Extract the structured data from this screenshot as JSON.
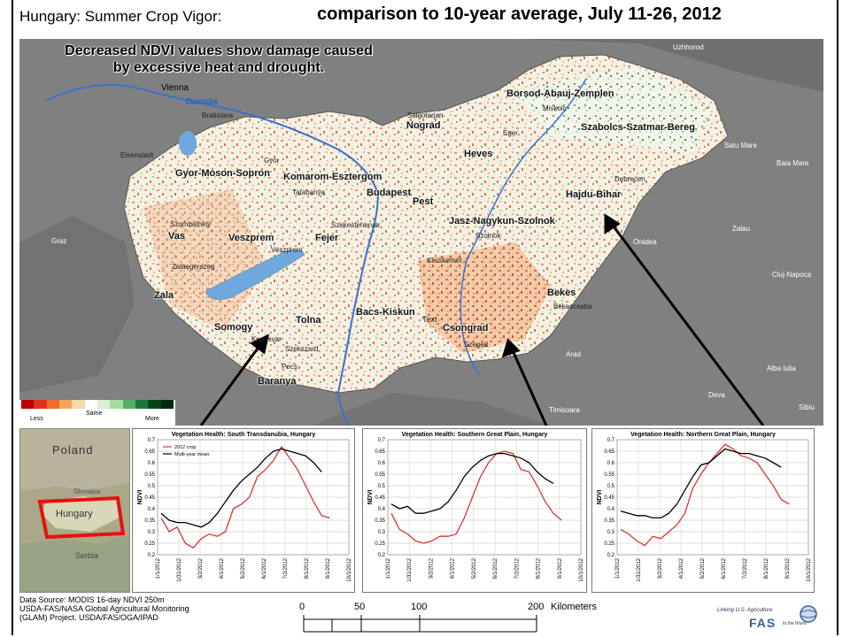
{
  "header": {
    "left_title": "Hungary: Summer Crop Vigor:",
    "right_title": "comparison to 10-year average, July 11-26, 2012"
  },
  "map": {
    "subtitle_line1": "Decreased NDVI values show damage caused",
    "subtitle_line2": "by excessive heat and drought.",
    "regions": [
      "Borsod-Abauj-Zemplen",
      "Nograd",
      "Heves",
      "Szabolcs-Szatmar-Bereg",
      "Gyor-Moson-Sopron",
      "Komarom-Esztergom",
      "Budapest",
      "Pest",
      "Hajdu-Bihar",
      "Jasz-Nagykun-Szolnok",
      "Vas",
      "Veszprem",
      "Fejer",
      "Zala",
      "Bekes",
      "Somogy",
      "Tolna",
      "Bacs-Kiskun",
      "Csongrad",
      "Baranya"
    ],
    "cities": [
      "Uzhhorod",
      "Vienna",
      "Bratislava",
      "Salgotarjan",
      "Miskolc",
      "Eger",
      "Satu Mare",
      "Baia Mare",
      "Debrecen",
      "Eisenstadt",
      "Gyor",
      "Tatabanya",
      "Szombathely",
      "Szekesfehervar",
      "Szolnok",
      "Zalau",
      "Graz",
      "Veszprem",
      "Kecskemet",
      "Oradea",
      "Zalaegerszeg",
      "Cluj-Napoca",
      "Bekescsaba",
      "Kaposvar",
      "Szekszard",
      "Szeged",
      "Arad",
      "Pecs",
      "Alba Iulia",
      "Deva",
      "Timisoara",
      "Sibiu"
    ],
    "river_label": "Danube",
    "other_label": "Text",
    "legend": {
      "less": "Less",
      "same": "Same",
      "more": "More",
      "colors": [
        "#c00000",
        "#e03020",
        "#ef6a30",
        "#f3a65a",
        "#f6d9a8",
        "#ffffff",
        "#d9f0d3",
        "#a6dba0",
        "#5aae61",
        "#1b7837",
        "#00441b",
        "#002a10"
      ]
    }
  },
  "locator": {
    "label_poland": "Poland",
    "label_hungary": "Hungary",
    "label_slovakia": "Slovakia",
    "label_serbia": "Serbia"
  },
  "chart_data": [
    {
      "type": "line",
      "title": "Vegetation Health: South Transdanubia, Hungary",
      "ylabel": "NDVI",
      "ylim": [
        0.2,
        0.7
      ],
      "yticks": [
        "0.7",
        "0.65",
        "0.6",
        "0.55",
        "0.5",
        "0.45",
        "0.4",
        "0.35",
        "0.3",
        "0.25",
        "0.2"
      ],
      "xticks": [
        "1/1/2012",
        "1/31/2012",
        "3/2/2012",
        "4/1/2012",
        "5/2/2012",
        "6/1/2012",
        "7/2/2012",
        "8/1/2012",
        "9/1/2012",
        "10/1/2012"
      ],
      "legend": [
        "2012 crop",
        "Multi-year mean"
      ],
      "series": [
        {
          "name": "2012 crop",
          "color": "#d33",
          "values": [
            0.36,
            0.3,
            0.32,
            0.25,
            0.23,
            0.27,
            0.29,
            0.28,
            0.3,
            0.4,
            0.42,
            0.45,
            0.54,
            0.57,
            0.61,
            0.67,
            0.62,
            0.57,
            0.5,
            0.43,
            0.37,
            0.36
          ]
        },
        {
          "name": "Multi-year mean",
          "color": "#000",
          "values": [
            0.38,
            0.35,
            0.34,
            0.34,
            0.33,
            0.32,
            0.34,
            0.38,
            0.43,
            0.48,
            0.52,
            0.55,
            0.58,
            0.62,
            0.65,
            0.66,
            0.65,
            0.64,
            0.63,
            0.6,
            0.56,
            null
          ]
        }
      ]
    },
    {
      "type": "line",
      "title": "Vegetation Health: Southern Great Plain, Hungary",
      "ylabel": "NDVI",
      "ylim": [
        0.2,
        0.7
      ],
      "yticks": [
        "0.7",
        "0.65",
        "0.6",
        "0.55",
        "0.5",
        "0.45",
        "0.4",
        "0.35",
        "0.3",
        "0.25",
        "0.2"
      ],
      "xticks": [
        "1/1/2012",
        "1/31/2012",
        "3/2/2012",
        "4/1/2012",
        "5/2/2012",
        "6/1/2012",
        "7/2/2012",
        "8/1/2012",
        "9/1/2012",
        "10/1/2012"
      ],
      "legend": [],
      "series": [
        {
          "name": "2012 crop",
          "color": "#d33",
          "values": [
            0.38,
            0.31,
            0.29,
            0.26,
            0.25,
            0.26,
            0.28,
            0.28,
            0.29,
            0.36,
            0.45,
            0.54,
            0.6,
            0.64,
            0.65,
            0.64,
            0.57,
            0.56,
            0.5,
            0.43,
            0.38,
            0.35
          ]
        },
        {
          "name": "Multi-year mean",
          "color": "#000",
          "values": [
            0.42,
            0.4,
            0.41,
            0.38,
            0.38,
            0.39,
            0.4,
            0.43,
            0.48,
            0.54,
            0.58,
            0.61,
            0.63,
            0.64,
            0.64,
            0.63,
            0.62,
            0.6,
            0.56,
            0.53,
            0.51,
            null
          ]
        }
      ]
    },
    {
      "type": "line",
      "title": "Vegetation Health: Northern Great Plain, Hungary",
      "ylabel": "NDVI",
      "ylim": [
        0.2,
        0.7
      ],
      "yticks": [
        "0.7",
        "0.65",
        "0.6",
        "0.55",
        "0.5",
        "0.45",
        "0.4",
        "0.35",
        "0.3",
        "0.25",
        "0.2"
      ],
      "xticks": [
        "1/1/2012",
        "1/31/2012",
        "3/2/2012",
        "4/1/2012",
        "5/2/2012",
        "6/1/2012",
        "7/2/2012",
        "8/1/2012",
        "9/1/2012",
        "10/1/2012"
      ],
      "legend": [],
      "series": [
        {
          "name": "2012 crop",
          "color": "#d33",
          "values": [
            0.31,
            0.29,
            0.26,
            0.24,
            0.28,
            0.27,
            0.3,
            0.33,
            0.38,
            0.49,
            0.55,
            0.6,
            0.64,
            0.68,
            0.66,
            0.63,
            0.62,
            0.6,
            0.55,
            0.5,
            0.44,
            0.42
          ]
        },
        {
          "name": "Multi-year mean",
          "color": "#000",
          "values": [
            0.39,
            0.38,
            0.37,
            0.37,
            0.36,
            0.36,
            0.38,
            0.42,
            0.48,
            0.54,
            0.59,
            0.6,
            0.63,
            0.66,
            0.65,
            0.64,
            0.64,
            0.63,
            0.62,
            0.6,
            0.58,
            null
          ]
        }
      ]
    }
  ],
  "footer": {
    "line1": "Data Source: MODIS 16-day NDVI 250m",
    "line2": "USDA-FAS/NASA Global Agricultural Monitoring",
    "line3": "(GLAM) Project. USDA/FAS/OGA/IPAD"
  },
  "scale": {
    "ticks": [
      "0",
      "50",
      "100",
      "200"
    ],
    "unit": "Kilometers"
  },
  "logo": {
    "tagline": "Linking U.S. Agriculture",
    "name": "FAS",
    "tail": "to the World"
  }
}
